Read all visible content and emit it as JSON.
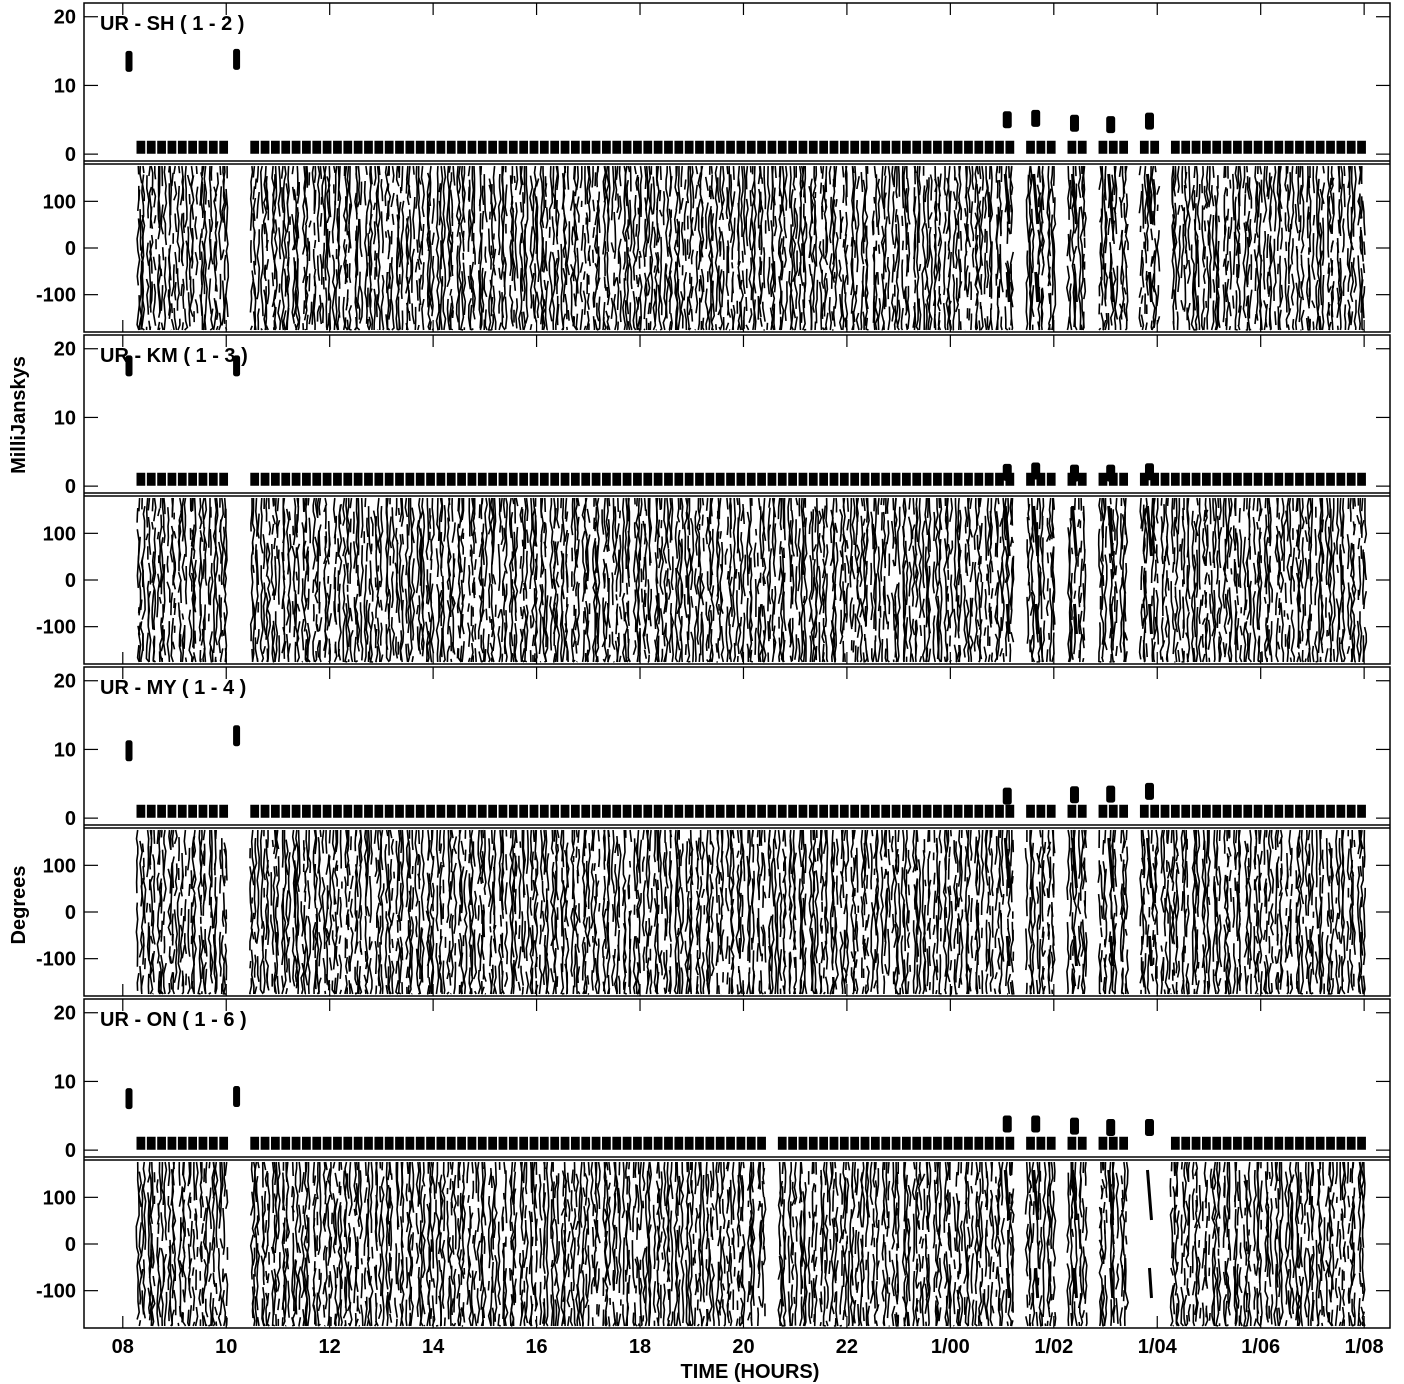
{
  "chart_data": {
    "type": "scatter",
    "xlabel": "TIME (HOURS)",
    "ylabel_amplitude": "MilliJanskys",
    "ylabel_phase": "Degrees",
    "x_ticks": [
      "08",
      "10",
      "12",
      "14",
      "16",
      "18",
      "20",
      "22",
      "1/00",
      "1/02",
      "1/04",
      "1/06",
      "1/08"
    ],
    "x_tick_hours": [
      8,
      10,
      12,
      14,
      16,
      18,
      20,
      22,
      24,
      26,
      28,
      30,
      32
    ],
    "xlim_hours": [
      7.25,
      32.5
    ],
    "amp_ticks": [
      "20",
      "10",
      "0"
    ],
    "amp_tick_values": [
      20,
      10,
      0
    ],
    "amp_ylim": [
      -1,
      22
    ],
    "phase_ticks": [
      "100",
      "0",
      "-100"
    ],
    "phase_tick_values": [
      100,
      0,
      -100
    ],
    "phase_ylim": [
      -180,
      180
    ],
    "scan_start_hour": 8.35,
    "scan_end_hour": 31.95,
    "scan_interval_hours": 0.2,
    "scan_amplitude_mjy": 1,
    "panels": [
      {
        "label": "UR - SH ( 1 - 2 )",
        "calibrators": [
          {
            "hour": 8.12,
            "amp": 13.5
          },
          {
            "hour": 10.2,
            "amp": 13.8
          }
        ],
        "strong_scans": [
          {
            "hour": 25.1,
            "amp": 5.0
          },
          {
            "hour": 25.65,
            "amp": 5.2
          },
          {
            "hour": 26.4,
            "amp": 4.5
          },
          {
            "hour": 27.1,
            "amp": 4.3
          },
          {
            "hour": 27.85,
            "amp": 4.8
          }
        ],
        "gaps": [
          [
            10.05,
            10.45
          ],
          [
            25.3,
            25.5
          ],
          [
            26.0,
            26.2
          ],
          [
            26.7,
            26.9
          ],
          [
            27.4,
            27.7
          ],
          [
            28.1,
            28.15
          ]
        ]
      },
      {
        "label": "UR - KM ( 1 - 3 )",
        "calibrators": [
          {
            "hour": 8.12,
            "amp": 17.5
          },
          {
            "hour": 10.2,
            "amp": 17.5
          }
        ],
        "strong_scans": [
          {
            "hour": 25.1,
            "amp": 2.0
          },
          {
            "hour": 25.65,
            "amp": 2.2
          },
          {
            "hour": 26.4,
            "amp": 1.9
          },
          {
            "hour": 27.1,
            "amp": 1.9
          },
          {
            "hour": 27.85,
            "amp": 2.1
          }
        ],
        "gaps": [
          [
            10.05,
            10.45
          ],
          [
            25.3,
            25.5
          ],
          [
            26.0,
            26.2
          ],
          [
            26.7,
            26.9
          ],
          [
            27.4,
            27.7
          ]
        ]
      },
      {
        "label": "UR - MY ( 1 - 4 )",
        "calibrators": [
          {
            "hour": 8.12,
            "amp": 9.8
          },
          {
            "hour": 10.2,
            "amp": 12.0
          }
        ],
        "strong_scans": [
          {
            "hour": 25.1,
            "amp": 3.2
          },
          {
            "hour": 26.4,
            "amp": 3.4
          },
          {
            "hour": 27.1,
            "amp": 3.5
          },
          {
            "hour": 27.85,
            "amp": 3.9
          }
        ],
        "gaps": [
          [
            10.05,
            10.45
          ],
          [
            25.3,
            25.5
          ],
          [
            26.0,
            26.2
          ],
          [
            26.7,
            26.9
          ],
          [
            27.4,
            27.7
          ]
        ]
      },
      {
        "label": "UR - ON ( 1 - 6 )",
        "calibrators": [
          {
            "hour": 8.12,
            "amp": 7.5
          },
          {
            "hour": 10.2,
            "amp": 7.8
          }
        ],
        "strong_scans": [
          {
            "hour": 25.1,
            "amp": 3.8
          },
          {
            "hour": 25.65,
            "amp": 3.8
          },
          {
            "hour": 26.4,
            "amp": 3.5
          },
          {
            "hour": 27.1,
            "amp": 3.3
          },
          {
            "hour": 27.85,
            "amp": 3.3
          }
        ],
        "gaps": [
          [
            10.05,
            10.45
          ],
          [
            20.45,
            20.6
          ],
          [
            25.3,
            25.5
          ],
          [
            26.0,
            26.2
          ],
          [
            26.7,
            26.9
          ],
          [
            27.4,
            28.3
          ]
        ]
      }
    ]
  }
}
